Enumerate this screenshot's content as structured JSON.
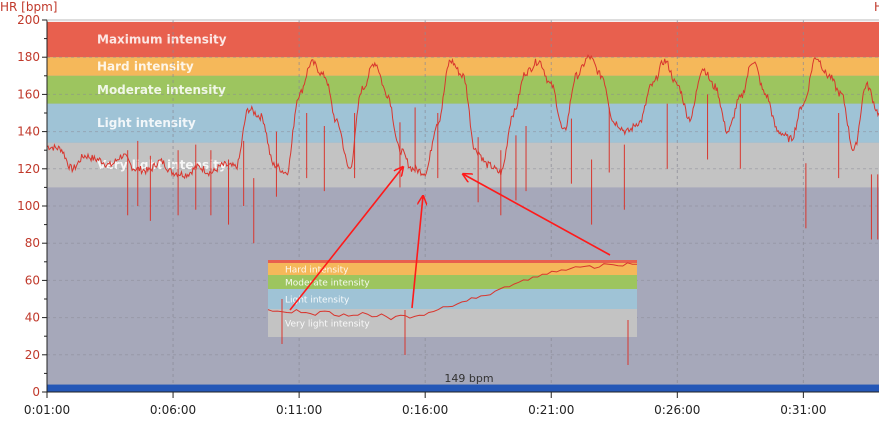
{
  "chart_data": {
    "type": "line",
    "title": "",
    "ylabel": "HR [bpm]",
    "right_label": "H",
    "xlabel": "",
    "ylim": [
      0,
      200
    ],
    "yticks": [
      0,
      20,
      40,
      60,
      80,
      100,
      120,
      140,
      160,
      180,
      200
    ],
    "x_range_minutes": [
      1,
      34
    ],
    "xticks": [
      {
        "minute": 1,
        "label": "0:01:00"
      },
      {
        "minute": 6,
        "label": "0:06:00"
      },
      {
        "minute": 11,
        "label": "0:11:00"
      },
      {
        "minute": 16,
        "label": "0:16:00"
      },
      {
        "minute": 21,
        "label": "0:21:00"
      },
      {
        "minute": 26,
        "label": "0:26:00"
      },
      {
        "minute": 31,
        "label": "0:31:00"
      }
    ],
    "zones": [
      {
        "name": "Maximum intensity",
        "min": 180,
        "max": 199,
        "color": "#e8604e"
      },
      {
        "name": "Hard intensity",
        "min": 170,
        "max": 180,
        "color": "#f5b85a"
      },
      {
        "name": "Moderate intensity",
        "min": 155,
        "max": 170,
        "color": "#9dc55f"
      },
      {
        "name": "Light intensity",
        "min": 134,
        "max": 155,
        "color": "#9fc3d6"
      },
      {
        "name": "Very light intensity",
        "min": 110,
        "max": 134,
        "color": "#c3c3c3"
      }
    ],
    "below_zone_color": "#a6a8ba",
    "line_color": "#d8362e",
    "average_label": "149 bpm",
    "average_bar_color": "#2457b7",
    "grid": true,
    "series": [
      {
        "x_minutes": [
          1,
          1.5,
          2,
          2.5,
          3,
          3.5,
          4,
          4.5,
          5,
          5.5,
          6,
          6.5,
          7,
          7.5,
          8,
          8.5,
          9,
          9.5,
          10,
          10.5,
          11,
          11.5,
          12,
          12.5,
          13,
          13.5,
          14,
          14.5,
          15,
          15.5,
          16,
          16.5,
          17,
          17.5,
          18,
          18.5,
          19,
          19.5,
          20,
          20.5,
          21,
          21.5,
          22,
          22.5,
          23,
          23.5,
          24,
          24.5,
          25,
          25.5,
          26,
          26.5,
          27,
          27.5,
          28,
          28.5,
          29,
          29.5,
          30,
          30.5,
          31,
          31.5,
          32,
          32.5,
          33,
          33.5,
          34
        ],
        "values": [
          132,
          131,
          120,
          127,
          125,
          122,
          127,
          120,
          119,
          124,
          118,
          117,
          121,
          118,
          122,
          121,
          152,
          148,
          122,
          118,
          160,
          177,
          170,
          145,
          120,
          163,
          177,
          160,
          130,
          120,
          118,
          145,
          178,
          170,
          130,
          122,
          118,
          150,
          172,
          178,
          165,
          140,
          170,
          180,
          170,
          145,
          140,
          145,
          165,
          178,
          165,
          147,
          174,
          164,
          140,
          158,
          178,
          160,
          140,
          136,
          155,
          180,
          170,
          160,
          130,
          165,
          150
        ]
      }
    ],
    "inset": {
      "zones": [
        {
          "name": "Hard intensity",
          "color": "#f5b85a"
        },
        {
          "name": "Moderate intensity",
          "color": "#9dc55f"
        },
        {
          "name": "Light intensity",
          "color": "#9fc3d6"
        },
        {
          "name": "Very light intensity",
          "color": "#c3c3c3"
        }
      ],
      "values": [
        40,
        39,
        38,
        40,
        38,
        36,
        39,
        36,
        37,
        36,
        38,
        35,
        37,
        33,
        36,
        34,
        36,
        38,
        40,
        42,
        44,
        46,
        48,
        50,
        53,
        56,
        58,
        61,
        63,
        65,
        67,
        68,
        69,
        70,
        71,
        70,
        72,
        71,
        73,
        72
      ]
    }
  }
}
